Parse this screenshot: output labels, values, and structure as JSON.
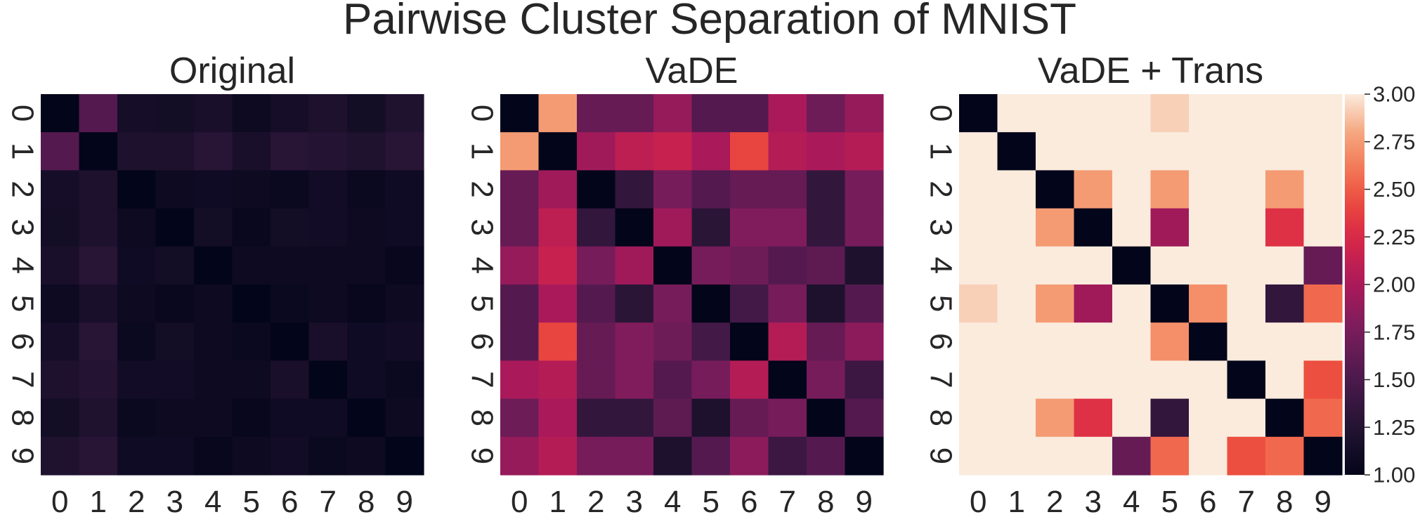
{
  "title": "Pairwise Cluster Separation of MNIST",
  "chart_data": {
    "type": "heatmap",
    "title": "Pairwise Cluster Separation of MNIST",
    "labels": [
      "0",
      "1",
      "2",
      "3",
      "4",
      "5",
      "6",
      "7",
      "8",
      "9"
    ],
    "colormap": "rocket",
    "colorbar": {
      "vmin": 1.0,
      "vmax": 3.0,
      "ticks": [
        "1.00",
        "1.25",
        "1.50",
        "1.75",
        "2.00",
        "2.25",
        "2.50",
        "2.75",
        "3.00"
      ]
    },
    "panels": [
      {
        "title": "Original",
        "matrix": [
          [
            1.0,
            1.55,
            1.15,
            1.13,
            1.18,
            1.08,
            1.15,
            1.2,
            1.13,
            1.22
          ],
          [
            1.55,
            1.0,
            1.2,
            1.2,
            1.28,
            1.18,
            1.28,
            1.25,
            1.22,
            1.28
          ],
          [
            1.15,
            1.2,
            1.0,
            1.08,
            1.1,
            1.08,
            1.06,
            1.12,
            1.06,
            1.1
          ],
          [
            1.13,
            1.2,
            1.08,
            1.0,
            1.13,
            1.05,
            1.13,
            1.12,
            1.08,
            1.1
          ],
          [
            1.18,
            1.28,
            1.1,
            1.13,
            1.0,
            1.08,
            1.08,
            1.08,
            1.08,
            1.04
          ],
          [
            1.08,
            1.18,
            1.08,
            1.05,
            1.08,
            1.0,
            1.06,
            1.08,
            1.04,
            1.08
          ],
          [
            1.15,
            1.28,
            1.06,
            1.13,
            1.08,
            1.06,
            1.0,
            1.18,
            1.1,
            1.12
          ],
          [
            1.2,
            1.25,
            1.12,
            1.12,
            1.08,
            1.08,
            1.18,
            1.0,
            1.1,
            1.06
          ],
          [
            1.13,
            1.22,
            1.06,
            1.08,
            1.08,
            1.04,
            1.1,
            1.1,
            1.0,
            1.08
          ],
          [
            1.22,
            1.28,
            1.1,
            1.1,
            1.04,
            1.08,
            1.12,
            1.06,
            1.08,
            1.0
          ]
        ]
      },
      {
        "title": "VaDE",
        "matrix": [
          [
            1.0,
            2.75,
            1.65,
            1.65,
            1.9,
            1.55,
            1.55,
            2.0,
            1.7,
            1.9
          ],
          [
            2.75,
            1.0,
            1.95,
            2.1,
            2.15,
            2.0,
            2.4,
            2.05,
            2.0,
            2.05
          ],
          [
            1.65,
            1.95,
            1.0,
            1.35,
            1.75,
            1.55,
            1.65,
            1.65,
            1.35,
            1.75
          ],
          [
            1.65,
            2.1,
            1.35,
            1.0,
            1.95,
            1.3,
            1.8,
            1.8,
            1.35,
            1.75
          ],
          [
            1.9,
            2.15,
            1.75,
            1.95,
            1.0,
            1.75,
            1.7,
            1.55,
            1.6,
            1.2
          ],
          [
            1.55,
            2.0,
            1.55,
            1.3,
            1.75,
            1.0,
            1.45,
            1.75,
            1.2,
            1.55
          ],
          [
            1.55,
            2.4,
            1.65,
            1.8,
            1.7,
            1.45,
            1.0,
            2.05,
            1.65,
            1.85
          ],
          [
            2.0,
            2.05,
            1.65,
            1.8,
            1.55,
            1.75,
            2.05,
            1.0,
            1.75,
            1.4
          ],
          [
            1.7,
            2.0,
            1.35,
            1.35,
            1.6,
            1.2,
            1.65,
            1.75,
            1.0,
            1.55
          ],
          [
            1.9,
            2.05,
            1.75,
            1.75,
            1.2,
            1.55,
            1.85,
            1.4,
            1.55,
            1.0
          ]
        ]
      },
      {
        "title": "VaDE + Trans",
        "matrix": [
          [
            1.0,
            3.0,
            3.0,
            3.0,
            3.0,
            2.92,
            3.0,
            3.0,
            3.0,
            3.0
          ],
          [
            3.0,
            1.0,
            3.0,
            3.0,
            3.0,
            3.0,
            3.0,
            3.0,
            3.0,
            3.0
          ],
          [
            3.0,
            3.0,
            1.0,
            2.75,
            3.0,
            2.75,
            3.0,
            3.0,
            2.75,
            3.0
          ],
          [
            3.0,
            3.0,
            2.75,
            1.0,
            3.0,
            1.95,
            3.0,
            3.0,
            2.3,
            3.0
          ],
          [
            3.0,
            3.0,
            3.0,
            3.0,
            1.0,
            3.0,
            3.0,
            3.0,
            3.0,
            1.65
          ],
          [
            2.92,
            3.0,
            2.75,
            1.95,
            3.0,
            1.0,
            2.7,
            3.0,
            1.35,
            2.55
          ],
          [
            3.0,
            3.0,
            3.0,
            3.0,
            3.0,
            2.7,
            1.0,
            3.0,
            3.0,
            3.0
          ],
          [
            3.0,
            3.0,
            3.0,
            3.0,
            3.0,
            3.0,
            3.0,
            1.0,
            3.0,
            2.45
          ],
          [
            3.0,
            3.0,
            2.75,
            2.3,
            3.0,
            1.35,
            3.0,
            3.0,
            1.0,
            2.55
          ],
          [
            3.0,
            3.0,
            3.0,
            3.0,
            1.65,
            2.55,
            3.0,
            2.45,
            2.55,
            1.0
          ]
        ]
      }
    ]
  }
}
